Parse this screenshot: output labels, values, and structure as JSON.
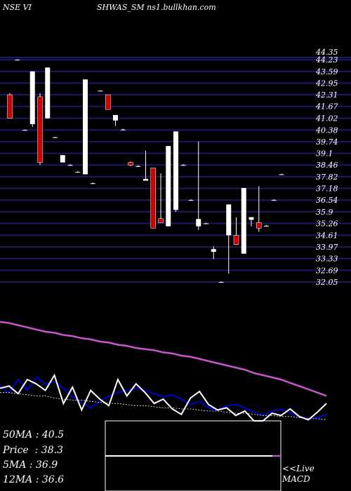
{
  "header": {
    "left": "NSE VI",
    "middle": "SHWAS_SM ns1.bullkhan.com"
  },
  "colors": {
    "background": "#000000",
    "grid": "#1a1a66",
    "bull": "#ffffff",
    "bear": "#cc0000",
    "ma_long": "#cc55cc",
    "ma_short": "#0000cc",
    "price_line": "#ffffff"
  },
  "chart_data": [
    {
      "type": "candlestick",
      "y_ticks": [
        "44.35",
        "44.23",
        "43.59",
        "42.95",
        "42.31",
        "41.67",
        "41.02",
        "40.38",
        "39.74",
        "39.1",
        "38.46",
        "37.82",
        "37.18",
        "36.54",
        "35.9",
        "35.26",
        "34.61",
        "33.97",
        "33.33",
        "32.69",
        "32.05"
      ],
      "ylim": [
        32.05,
        44.35
      ],
      "candles": [
        {
          "o": 42.31,
          "h": 42.4,
          "l": 41.0,
          "c": 41.02
        },
        {
          "o": 44.23,
          "h": 44.25,
          "l": 44.2,
          "c": 44.23
        },
        {
          "o": 40.38,
          "h": 40.4,
          "l": 40.35,
          "c": 40.38
        },
        {
          "o": 40.7,
          "h": 43.59,
          "l": 40.55,
          "c": 43.59
        },
        {
          "o": 42.2,
          "h": 42.4,
          "l": 38.46,
          "c": 38.6
        },
        {
          "o": 41.02,
          "h": 43.8,
          "l": 41.0,
          "c": 43.8
        },
        {
          "o": 39.98,
          "h": 40.0,
          "l": 39.96,
          "c": 39.98
        },
        {
          "o": 38.6,
          "h": 39.0,
          "l": 38.6,
          "c": 39.0
        },
        {
          "o": 38.46,
          "h": 38.5,
          "l": 38.42,
          "c": 38.46
        },
        {
          "o": 38.08,
          "h": 38.12,
          "l": 38.04,
          "c": 38.08
        },
        {
          "o": 37.95,
          "h": 43.15,
          "l": 37.95,
          "c": 43.15
        },
        {
          "o": 37.46,
          "h": 37.5,
          "l": 37.42,
          "c": 37.46
        },
        {
          "o": 42.53,
          "h": 42.55,
          "l": 42.5,
          "c": 42.53
        },
        {
          "o": 42.31,
          "h": 42.31,
          "l": 41.5,
          "c": 41.5
        },
        {
          "o": 40.9,
          "h": 41.2,
          "l": 40.6,
          "c": 41.2
        },
        {
          "o": 40.4,
          "h": 40.45,
          "l": 40.35,
          "c": 40.4
        },
        {
          "o": 38.6,
          "h": 38.65,
          "l": 38.4,
          "c": 38.45
        },
        {
          "o": 38.4,
          "h": 38.45,
          "l": 38.35,
          "c": 38.4
        },
        {
          "o": 37.6,
          "h": 39.25,
          "l": 37.6,
          "c": 37.7
        },
        {
          "o": 38.3,
          "h": 38.3,
          "l": 35.0,
          "c": 35.0
        },
        {
          "o": 35.52,
          "h": 38.0,
          "l": 35.3,
          "c": 35.3
        },
        {
          "o": 35.1,
          "h": 39.5,
          "l": 35.1,
          "c": 39.5
        },
        {
          "o": 36.0,
          "h": 40.3,
          "l": 35.9,
          "c": 40.3
        },
        {
          "o": 38.46,
          "h": 38.5,
          "l": 38.42,
          "c": 38.46
        },
        {
          "o": 36.54,
          "h": 36.58,
          "l": 36.5,
          "c": 36.54
        },
        {
          "o": 35.1,
          "h": 39.74,
          "l": 34.9,
          "c": 35.5
        },
        {
          "o": 35.26,
          "h": 35.3,
          "l": 35.22,
          "c": 35.26
        },
        {
          "o": 33.7,
          "h": 34.0,
          "l": 33.3,
          "c": 33.85
        },
        {
          "o": 32.05,
          "h": 32.09,
          "l": 32.01,
          "c": 32.05
        },
        {
          "o": 34.61,
          "h": 36.3,
          "l": 32.5,
          "c": 36.3
        },
        {
          "o": 34.61,
          "h": 35.6,
          "l": 34.1,
          "c": 34.1
        },
        {
          "o": 33.6,
          "h": 37.2,
          "l": 33.6,
          "c": 37.2
        },
        {
          "o": 35.46,
          "h": 35.6,
          "l": 35.1,
          "c": 35.6
        },
        {
          "o": 35.3,
          "h": 37.3,
          "l": 34.8,
          "c": 35.0
        },
        {
          "o": 35.13,
          "h": 35.17,
          "l": 35.09,
          "c": 35.13
        },
        {
          "o": 36.54,
          "h": 36.58,
          "l": 36.5,
          "c": 36.54
        },
        {
          "o": 37.95,
          "h": 37.99,
          "l": 37.91,
          "c": 37.95
        }
      ]
    },
    {
      "type": "line",
      "series": [
        {
          "values": [
            0.09,
            0.1,
            0.12,
            0.14,
            0.16,
            0.18,
            0.19,
            0.21,
            0.22,
            0.24,
            0.25,
            0.27,
            0.28,
            0.3,
            0.31,
            0.33,
            0.34,
            0.35,
            0.37,
            0.38,
            0.4,
            0.41,
            0.43,
            0.45,
            0.47,
            0.49,
            0.51,
            0.53,
            0.56,
            0.58,
            0.6,
            0.62,
            0.65,
            0.68,
            0.71,
            0.74,
            0.77
          ]
        },
        {
          "values": [
            0.68,
            0.74,
            0.62,
            0.72,
            0.6,
            0.66,
            0.64,
            0.7,
            0.78,
            0.83,
            0.88,
            0.82,
            0.77,
            0.74,
            0.72,
            0.7,
            0.72,
            0.75,
            0.78,
            0.76,
            0.8,
            0.85,
            0.82,
            0.88,
            0.9,
            0.86,
            0.85,
            0.88,
            0.92,
            0.95,
            0.91,
            0.89,
            0.93,
            0.96,
            0.98,
            0.97,
            0.94
          ]
        },
        {
          "values": [
            0.7,
            0.68,
            0.75,
            0.62,
            0.66,
            0.72,
            0.58,
            0.84,
            0.69,
            0.9,
            0.72,
            0.8,
            0.86,
            0.62,
            0.77,
            0.66,
            0.74,
            0.84,
            0.8,
            0.89,
            0.94,
            0.79,
            0.73,
            0.85,
            0.9,
            0.88,
            0.95,
            0.91,
            1.0,
            1.0,
            0.93,
            0.95,
            0.89,
            0.96,
            0.99,
            0.92,
            0.84
          ]
        },
        {
          "values": [
            0.74,
            0.74,
            0.75,
            0.76,
            0.77,
            0.77,
            0.79,
            0.8,
            0.81,
            0.81,
            0.82,
            0.83,
            0.84,
            0.84,
            0.85,
            0.86,
            0.86,
            0.87,
            0.88,
            0.88,
            0.89,
            0.89,
            0.9,
            0.91,
            0.91,
            0.92,
            0.93,
            0.93,
            0.94,
            0.95,
            0.95,
            0.96,
            0.96,
            0.97,
            0.98,
            0.98,
            0.99
          ]
        }
      ]
    }
  ],
  "info": {
    "ma50": "50MA : 40.5",
    "price": "Price  : 38.3",
    "ma5": "5MA : 36.9",
    "ma12": "12MA : 36.6"
  },
  "macd": {
    "label1": "<<Live",
    "label2": "MACD",
    "line_level": 0.5
  }
}
